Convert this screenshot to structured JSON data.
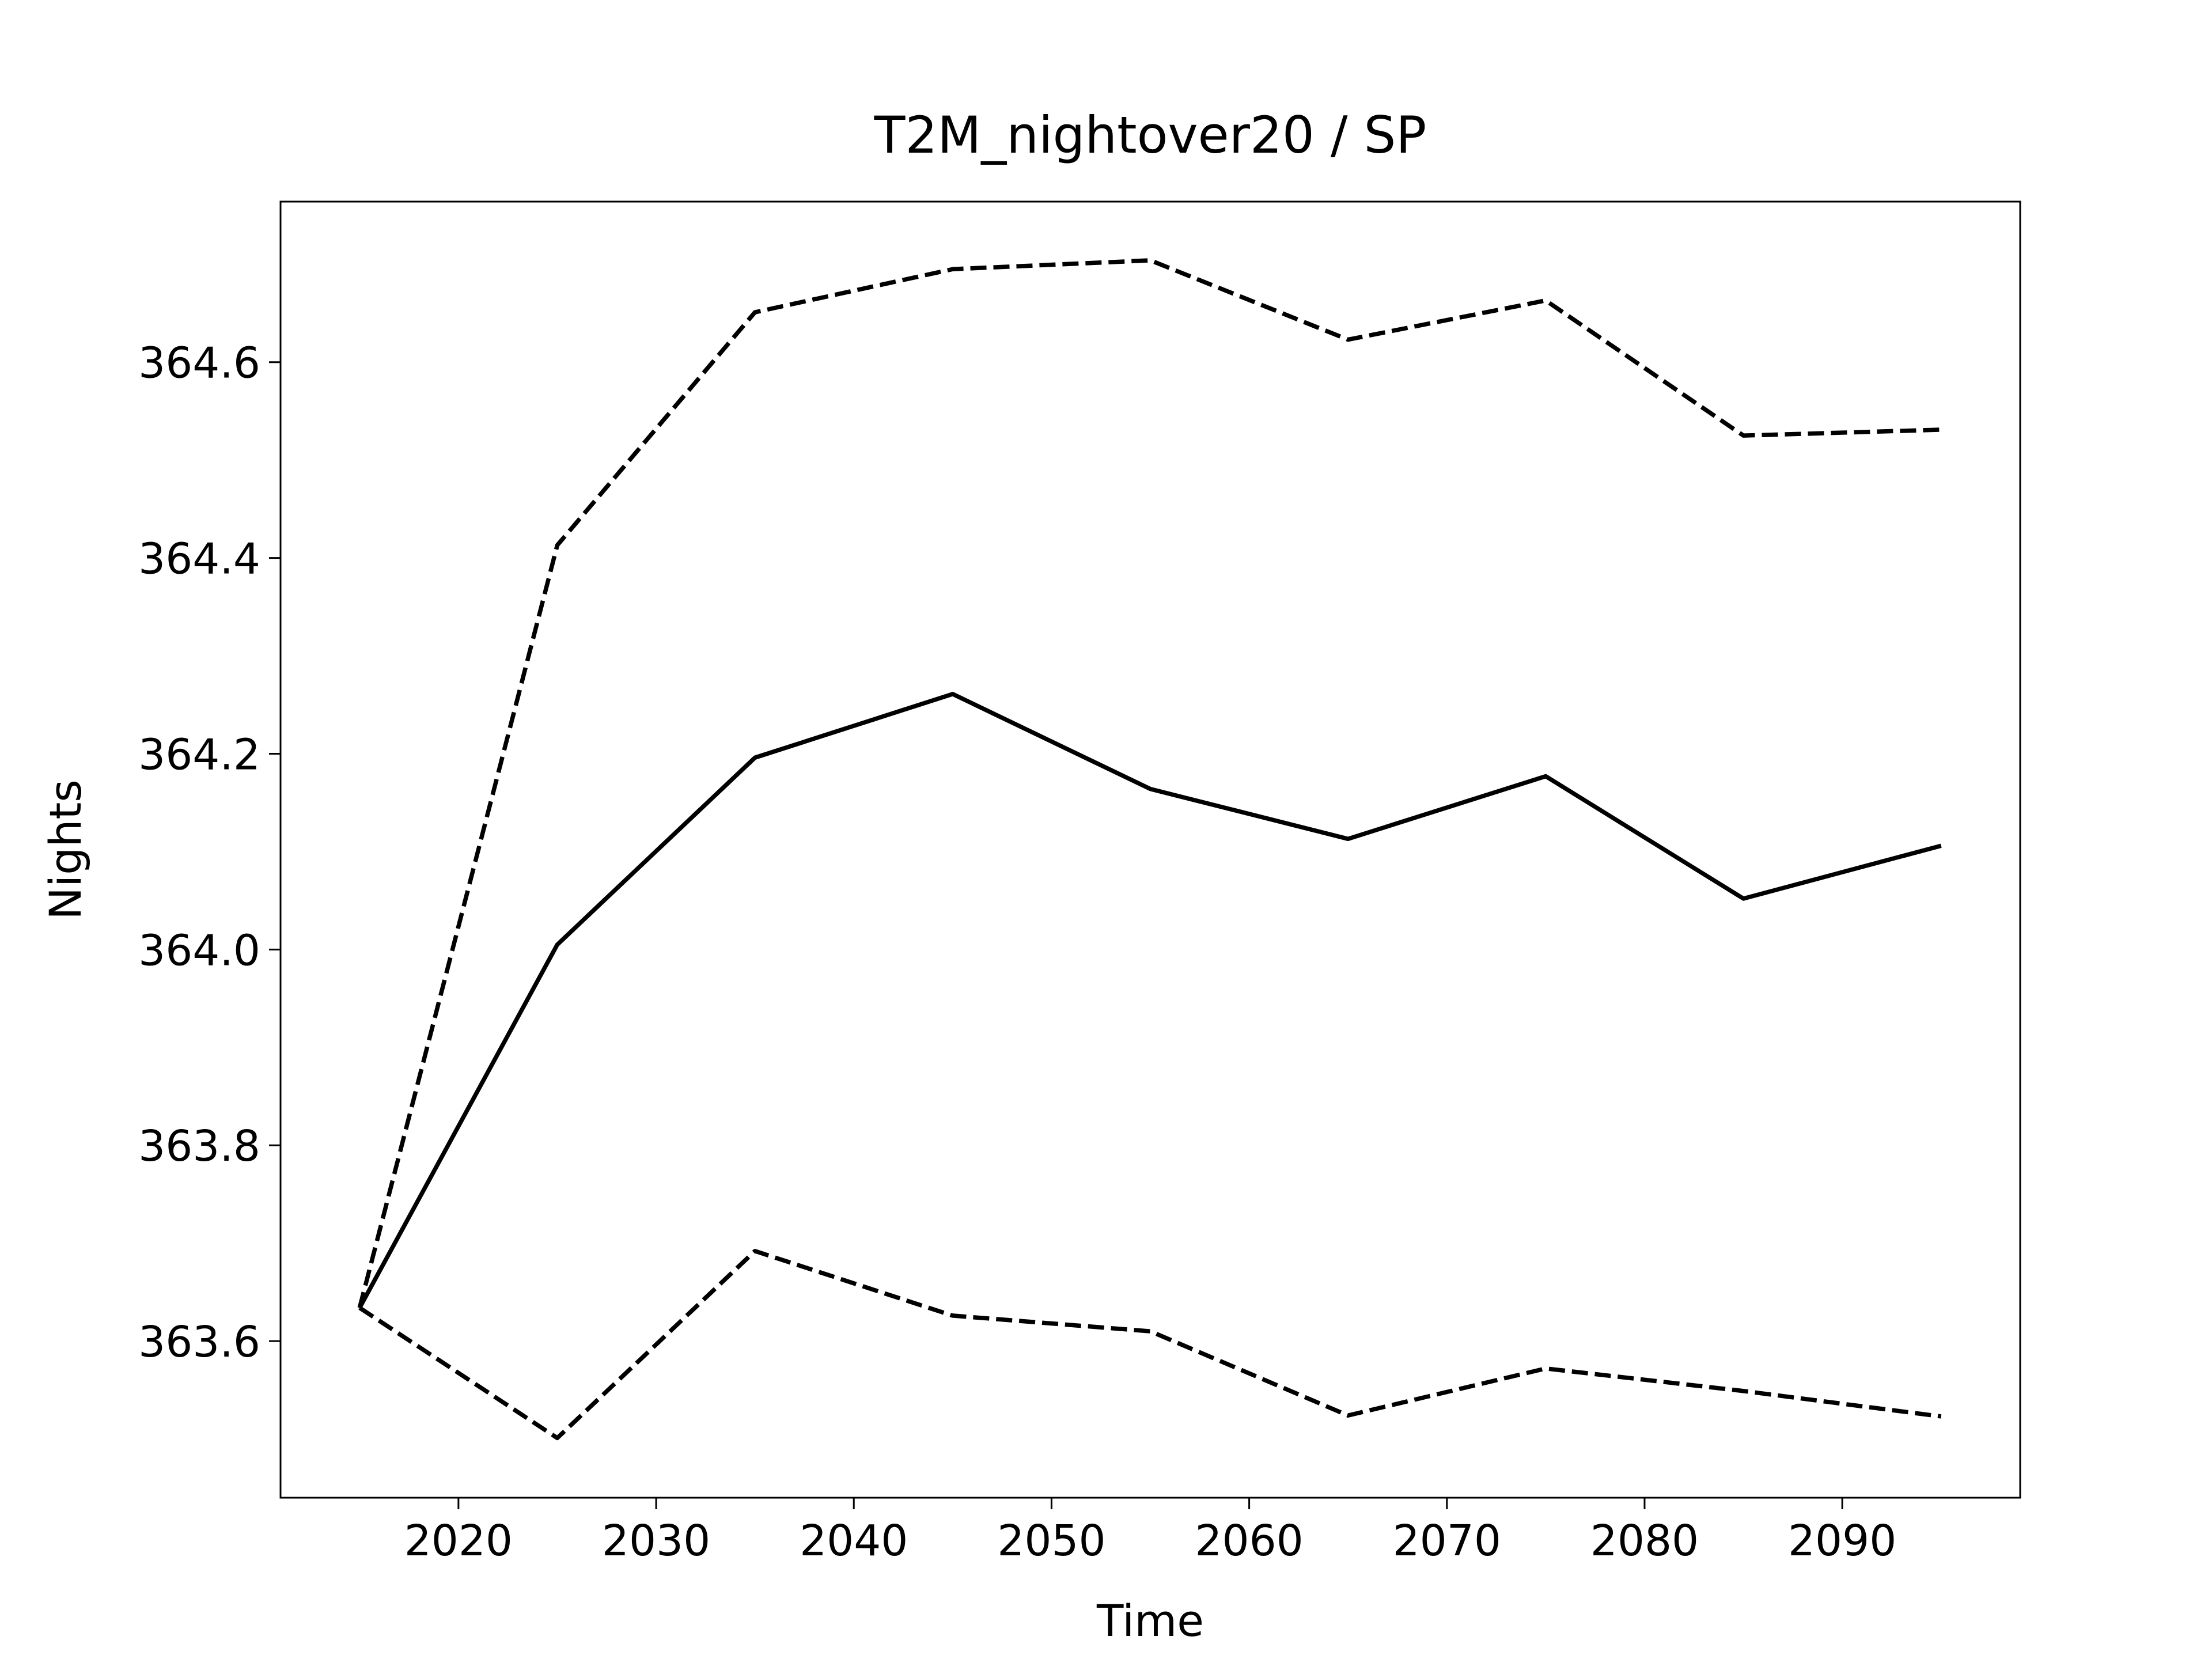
{
  "chart_data": {
    "type": "line",
    "title": "T2M_nightover20 / SP",
    "xlabel": "Time",
    "ylabel": "Nights",
    "x": [
      2015,
      2025,
      2035,
      2045,
      2055,
      2065,
      2075,
      2085,
      2095
    ],
    "series": [
      {
        "color": "#000000",
        "linestyle": "solid",
        "values": [
          363.634,
          364.005,
          364.196,
          364.261,
          364.164,
          364.113,
          364.177,
          364.052,
          364.106
        ]
      },
      {
        "color": "#000000",
        "linestyle": "dashed",
        "values": [
          363.634,
          364.413,
          364.651,
          364.695,
          364.704,
          364.623,
          364.663,
          364.525,
          364.531
        ]
      },
      {
        "color": "#000000",
        "linestyle": "dashed",
        "values": [
          363.634,
          363.501,
          363.692,
          363.626,
          363.61,
          363.524,
          363.572,
          363.549,
          363.523
        ]
      }
    ],
    "xlim": [
      2011,
      2099
    ],
    "xticks": [
      2020,
      2030,
      2040,
      2050,
      2060,
      2070,
      2080,
      2090
    ],
    "ylim": [
      363.44,
      364.764
    ],
    "yticks": [
      {
        "value": 363.6,
        "label": "363.6"
      },
      {
        "value": 363.8,
        "label": "363.8"
      },
      {
        "value": 364.0,
        "label": "364.0"
      },
      {
        "value": 364.2,
        "label": "364.2"
      },
      {
        "value": 364.4,
        "label": "364.4"
      },
      {
        "value": 364.6,
        "label": "364.6"
      }
    ],
    "grid": false
  }
}
